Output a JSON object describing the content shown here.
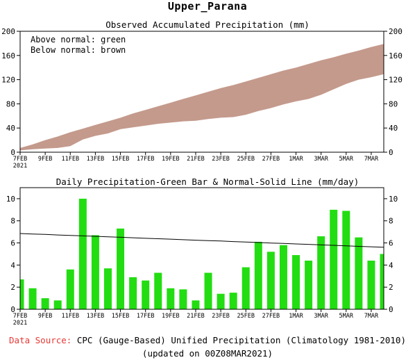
{
  "page_title": "Upper_Parana",
  "footer": {
    "source_label": "Data Source:",
    "source_text": " CPC (Gauge-Based) Unified Precipitation (Climatology 1981-2010)",
    "updated_text": "(updated on 00Z08MAR2021)"
  },
  "chart_data": [
    {
      "type": "area",
      "title": "Observed Accumulated Precipitation (mm)",
      "legend_lines": [
        "Above normal: green",
        "Below normal: brown"
      ],
      "ylim": [
        0,
        200
      ],
      "yticks": [
        0,
        40,
        80,
        120,
        160,
        200
      ],
      "x_tick_labels": [
        "7FEB\n2021",
        "9FEB",
        "11FEB",
        "13FEB",
        "15FEB",
        "17FEB",
        "19FEB",
        "21FEB",
        "23FEB",
        "25FEB",
        "27FEB",
        "1MAR",
        "3MAR",
        "5MAR",
        "7MAR"
      ],
      "dates": [
        "7FEB",
        "8FEB",
        "9FEB",
        "10FEB",
        "11FEB",
        "12FEB",
        "13FEB",
        "14FEB",
        "15FEB",
        "16FEB",
        "17FEB",
        "18FEB",
        "19FEB",
        "20FEB",
        "21FEB",
        "22FEB",
        "23FEB",
        "24FEB",
        "25FEB",
        "26FEB",
        "27FEB",
        "28FEB",
        "1MAR",
        "2MAR",
        "3MAR",
        "4MAR",
        "5MAR",
        "6MAR",
        "7MAR",
        "8MAR"
      ],
      "series": [
        {
          "name": "Observed",
          "values": [
            3,
            5,
            6,
            7,
            10,
            21,
            27,
            31,
            38,
            41,
            44,
            47,
            49,
            51,
            52,
            55,
            57,
            58,
            62,
            68,
            73,
            79,
            84,
            88,
            95,
            104,
            113,
            120,
            124,
            129
          ]
        },
        {
          "name": "Normal",
          "values": [
            7,
            13,
            20,
            26,
            33,
            39,
            45,
            51,
            57,
            64,
            70,
            76,
            82,
            88,
            94,
            100,
            106,
            111,
            117,
            123,
            129,
            135,
            140,
            146,
            152,
            157,
            163,
            168,
            174,
            179
          ]
        }
      ],
      "colors": {
        "below": "#c49a8c",
        "above": "#22cc22"
      }
    },
    {
      "type": "bar",
      "title": "Daily Precipitation-Green Bar & Normal-Solid Line (mm/day)",
      "ylim": [
        0,
        11
      ],
      "yticks": [
        0,
        2,
        4,
        6,
        8,
        10
      ],
      "x_tick_labels": [
        "7FEB\n2021",
        "9FEB",
        "11FEB",
        "13FEB",
        "15FEB",
        "17FEB",
        "19FEB",
        "21FEB",
        "23FEB",
        "25FEB",
        "27FEB",
        "1MAR",
        "3MAR",
        "5MAR",
        "7MAR"
      ],
      "dates": [
        "7FEB",
        "8FEB",
        "9FEB",
        "10FEB",
        "11FEB",
        "12FEB",
        "13FEB",
        "14FEB",
        "15FEB",
        "16FEB",
        "17FEB",
        "18FEB",
        "19FEB",
        "20FEB",
        "21FEB",
        "22FEB",
        "23FEB",
        "24FEB",
        "25FEB",
        "26FEB",
        "27FEB",
        "28FEB",
        "1MAR",
        "2MAR",
        "3MAR",
        "4MAR",
        "5MAR",
        "6MAR",
        "7MAR",
        "8MAR"
      ],
      "series": [
        {
          "name": "Daily",
          "values": [
            2.7,
            1.9,
            1.0,
            0.8,
            3.6,
            10.0,
            6.7,
            3.7,
            7.3,
            2.9,
            2.6,
            3.3,
            1.9,
            1.8,
            0.8,
            3.3,
            1.4,
            1.5,
            3.8,
            6.1,
            5.2,
            5.8,
            4.9,
            4.4,
            6.6,
            9.0,
            8.9,
            6.5,
            4.4,
            5.0
          ]
        },
        {
          "name": "Normal",
          "values": [
            6.85,
            6.81,
            6.77,
            6.72,
            6.68,
            6.64,
            6.6,
            6.55,
            6.51,
            6.47,
            6.42,
            6.38,
            6.34,
            6.29,
            6.25,
            6.21,
            6.17,
            6.12,
            6.08,
            6.04,
            5.99,
            5.95,
            5.91,
            5.87,
            5.82,
            5.78,
            5.74,
            5.69,
            5.65,
            5.61
          ]
        }
      ],
      "colors": {
        "bar": "#22dd11",
        "line": "#000000"
      }
    }
  ]
}
